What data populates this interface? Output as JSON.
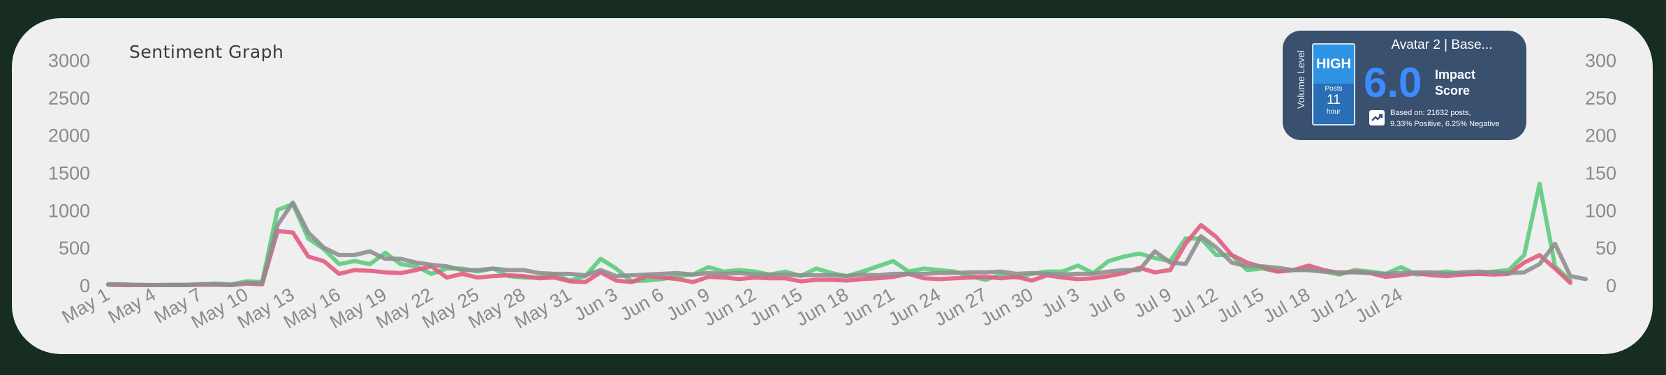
{
  "chart_data": {
    "type": "line",
    "title": "Sentiment Graph",
    "x_tick_labels": [
      "May 1",
      "May 4",
      "May 7",
      "May 10",
      "May 13",
      "May 16",
      "May 19",
      "May 22",
      "May 25",
      "May 28",
      "May 31",
      "Jun 3",
      "Jun 6",
      "Jun 9",
      "Jun 12",
      "Jun 15",
      "Jun 18",
      "Jun 21",
      "Jun 24",
      "Jun 27",
      "Jun 30",
      "Jul 3",
      "Jul 6",
      "Jul 9",
      "Jul 12",
      "Jul 15",
      "Jul 18",
      "Jul 21",
      "Jul 24"
    ],
    "start_date": "May 1",
    "y_left": {
      "ticks": [
        0,
        500,
        1000,
        1500,
        2000,
        2500,
        3000
      ],
      "range": [
        0,
        3000
      ]
    },
    "y_right": {
      "ticks": [
        0,
        50,
        100,
        150,
        200,
        250,
        300
      ],
      "range": [
        0,
        300
      ]
    },
    "grid": false,
    "legend": "none",
    "series": [
      {
        "color": "#5ccb7e",
        "axis": "left",
        "values": [
          10,
          5,
          5,
          0,
          5,
          5,
          10,
          20,
          10,
          50,
          40,
          1000,
          1080,
          620,
          480,
          280,
          320,
          280,
          430,
          280,
          250,
          150,
          220,
          220,
          180,
          220,
          120,
          100,
          100,
          140,
          60,
          120,
          350,
          220,
          50,
          60,
          80,
          120,
          140,
          240,
          180,
          200,
          180,
          140,
          180,
          120,
          220,
          160,
          120,
          180,
          250,
          320,
          180,
          220,
          200,
          180,
          120,
          70,
          140,
          100,
          150,
          180,
          180,
          260,
          160,
          320,
          380,
          420,
          360,
          320,
          620,
          620,
          400,
          400,
          200,
          220,
          180,
          200,
          200,
          180,
          140,
          200,
          180,
          150,
          240,
          140,
          160,
          180,
          150,
          150,
          180,
          200,
          400,
          1350,
          250,
          60
        ]
      },
      {
        "color": "#e35c80",
        "axis": "left",
        "values": [
          5,
          0,
          0,
          0,
          0,
          0,
          5,
          5,
          0,
          20,
          10,
          720,
          700,
          380,
          320,
          150,
          200,
          190,
          170,
          160,
          200,
          250,
          100,
          150,
          100,
          120,
          130,
          120,
          90,
          100,
          50,
          40,
          170,
          60,
          40,
          120,
          100,
          80,
          40,
          110,
          100,
          80,
          100,
          90,
          90,
          50,
          70,
          70,
          60,
          80,
          90,
          110,
          150,
          90,
          80,
          90,
          100,
          110,
          90,
          110,
          60,
          130,
          100,
          80,
          90,
          120,
          160,
          230,
          170,
          200,
          550,
          800,
          640,
          400,
          300,
          240,
          180,
          200,
          260,
          200,
          160,
          180,
          160,
          110,
          130,
          160,
          130,
          120,
          140,
          150,
          140,
          150,
          300,
          400,
          220,
          30
        ]
      },
      {
        "color": "#8f8f8f",
        "axis": "right",
        "values": [
          1,
          1,
          0,
          0,
          0,
          0,
          1,
          1,
          0,
          3,
          2,
          80,
          110,
          70,
          50,
          40,
          40,
          45,
          35,
          35,
          30,
          27,
          25,
          20,
          20,
          22,
          20,
          20,
          16,
          15,
          15,
          13,
          20,
          12,
          13,
          14,
          15,
          16,
          14,
          16,
          15,
          16,
          14,
          14,
          14,
          13,
          13,
          13,
          12,
          14,
          13,
          15,
          15,
          15,
          16,
          16,
          17,
          17,
          18,
          15,
          16,
          15,
          14,
          15,
          15,
          18,
          20,
          20,
          45,
          30,
          28,
          65,
          50,
          30,
          25,
          25,
          23,
          20,
          20,
          18,
          17,
          17,
          16,
          15,
          16,
          17,
          17,
          15,
          17,
          18,
          17,
          16,
          17,
          28,
          55,
          12,
          8
        ]
      }
    ]
  },
  "impact_card": {
    "title": "Avatar 2 | Base...",
    "volume_label": "Volume Level",
    "volume_level": "HIGH",
    "posts_label": "Posts",
    "posts_count": "11",
    "posts_unit": "hour",
    "score": "6.0",
    "score_label_1": "Impact",
    "score_label_2": "Score",
    "based_line_1": "Based on: 21632 posts,",
    "based_line_2": "9.33% Positive, 6.25% Negative",
    "trend_icon": "trending-up-icon",
    "score_color": "#3b8cff"
  }
}
